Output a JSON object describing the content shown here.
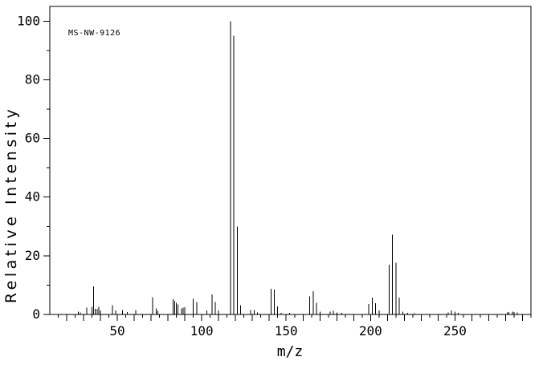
{
  "figure": {
    "background_color": "#ffffff",
    "line_color": "#000000",
    "spectrum_id": "MS-NW-9126"
  },
  "chart_data": {
    "type": "bar",
    "subtype": "mass-spectrum-stick-plot",
    "title": "",
    "annotation": "MS-NW-9126",
    "xlabel": "m/z",
    "ylabel": "Relative Intensity",
    "xlim": [
      10,
      295
    ],
    "ylim": [
      0,
      105
    ],
    "x_major_tick_labels": [
      "50",
      "100",
      "150",
      "200",
      "250"
    ],
    "x_major_ticks": [
      50,
      100,
      150,
      200,
      250
    ],
    "x_long_tick_step": 10,
    "x_minor_tick_step": 5,
    "y_major_tick_labels": [
      "0",
      "20",
      "40",
      "60",
      "80",
      "100"
    ],
    "y_major_ticks": [
      0,
      20,
      40,
      60,
      80,
      100
    ],
    "y_minor_tick_step": 10,
    "grid": "off",
    "legend": "none",
    "peaks": [
      [
        27,
        1.0
      ],
      [
        28,
        0.7
      ],
      [
        32,
        2.3
      ],
      [
        35,
        2.6
      ],
      [
        36,
        9.6
      ],
      [
        37,
        1.9
      ],
      [
        38,
        1.9
      ],
      [
        39,
        2.6
      ],
      [
        40,
        1.4
      ],
      [
        47,
        3.2
      ],
      [
        49,
        1.4
      ],
      [
        53,
        1.5
      ],
      [
        56,
        0.8
      ],
      [
        61,
        1.5
      ],
      [
        71,
        5.9
      ],
      [
        73,
        2.0
      ],
      [
        74,
        1.2
      ],
      [
        83,
        5.2
      ],
      [
        84,
        4.6
      ],
      [
        85,
        3.9
      ],
      [
        86,
        3.4
      ],
      [
        88,
        2.1
      ],
      [
        89,
        2.3
      ],
      [
        90,
        2.4
      ],
      [
        95,
        5.3
      ],
      [
        97,
        4.3
      ],
      [
        103,
        1.4
      ],
      [
        106,
        6.8
      ],
      [
        108,
        4.3
      ],
      [
        110,
        1.4
      ],
      [
        117,
        100
      ],
      [
        119,
        95
      ],
      [
        121,
        30
      ],
      [
        123,
        3.2
      ],
      [
        129,
        1.5
      ],
      [
        131,
        1.5
      ],
      [
        133,
        0.7
      ],
      [
        141,
        8.8
      ],
      [
        143,
        8.5
      ],
      [
        145,
        2.8
      ],
      [
        147,
        0.5
      ],
      [
        152,
        0.5
      ],
      [
        164,
        6.2
      ],
      [
        166,
        7.9
      ],
      [
        168,
        3.9
      ],
      [
        170,
        1.0
      ],
      [
        176,
        0.9
      ],
      [
        178,
        1.2
      ],
      [
        180,
        0.7
      ],
      [
        183,
        0.5
      ],
      [
        199,
        3.6
      ],
      [
        201,
        5.8
      ],
      [
        203,
        3.8
      ],
      [
        205,
        1.3
      ],
      [
        211,
        17.0
      ],
      [
        213,
        27.2
      ],
      [
        215,
        17.6
      ],
      [
        217,
        5.7
      ],
      [
        219,
        0.9
      ],
      [
        222,
        0.5
      ],
      [
        226,
        0.4
      ],
      [
        246,
        0.7
      ],
      [
        248,
        1.3
      ],
      [
        250,
        1.0
      ],
      [
        252,
        0.5
      ],
      [
        281,
        0.7
      ],
      [
        282,
        0.8
      ],
      [
        284,
        0.9
      ],
      [
        285,
        0.8
      ],
      [
        287,
        0.7
      ]
    ]
  }
}
